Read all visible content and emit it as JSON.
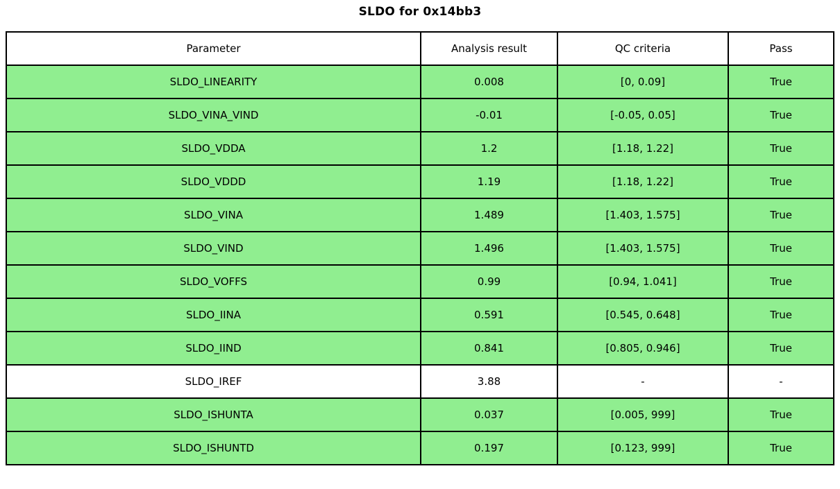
{
  "title": "SLDO for 0x14bb3",
  "colors": {
    "pass_green": "#90EE90",
    "neutral_white": "#FFFFFF",
    "border": "#000000"
  },
  "table": {
    "headers": {
      "parameter": "Parameter",
      "result": "Analysis result",
      "criteria": "QC criteria",
      "pass": "Pass"
    },
    "rows": [
      {
        "parameter": "SLDO_LINEARITY",
        "result": "0.008",
        "criteria": "[0, 0.09]",
        "pass": "True",
        "highlighted": true
      },
      {
        "parameter": "SLDO_VINA_VIND",
        "result": "-0.01",
        "criteria": "[-0.05, 0.05]",
        "pass": "True",
        "highlighted": true
      },
      {
        "parameter": "SLDO_VDDA",
        "result": "1.2",
        "criteria": "[1.18, 1.22]",
        "pass": "True",
        "highlighted": true
      },
      {
        "parameter": "SLDO_VDDD",
        "result": "1.19",
        "criteria": "[1.18, 1.22]",
        "pass": "True",
        "highlighted": true
      },
      {
        "parameter": "SLDO_VINA",
        "result": "1.489",
        "criteria": "[1.403, 1.575]",
        "pass": "True",
        "highlighted": true
      },
      {
        "parameter": "SLDO_VIND",
        "result": "1.496",
        "criteria": "[1.403, 1.575]",
        "pass": "True",
        "highlighted": true
      },
      {
        "parameter": "SLDO_VOFFS",
        "result": "0.99",
        "criteria": "[0.94, 1.041]",
        "pass": "True",
        "highlighted": true
      },
      {
        "parameter": "SLDO_IINA",
        "result": "0.591",
        "criteria": "[0.545, 0.648]",
        "pass": "True",
        "highlighted": true
      },
      {
        "parameter": "SLDO_IIND",
        "result": "0.841",
        "criteria": "[0.805, 0.946]",
        "pass": "True",
        "highlighted": true
      },
      {
        "parameter": "SLDO_IREF",
        "result": "3.88",
        "criteria": "-",
        "pass": "-",
        "highlighted": false
      },
      {
        "parameter": "SLDO_ISHUNTA",
        "result": "0.037",
        "criteria": "[0.005, 999]",
        "pass": "True",
        "highlighted": true
      },
      {
        "parameter": "SLDO_ISHUNTD",
        "result": "0.197",
        "criteria": "[0.123, 999]",
        "pass": "True",
        "highlighted": true
      }
    ]
  },
  "chart_data": {
    "type": "table",
    "title": "SLDO for 0x14bb3",
    "columns": [
      "Parameter",
      "Analysis result",
      "QC criteria",
      "Pass"
    ],
    "rows": [
      [
        "SLDO_LINEARITY",
        "0.008",
        "[0, 0.09]",
        "True"
      ],
      [
        "SLDO_VINA_VIND",
        "-0.01",
        "[-0.05, 0.05]",
        "True"
      ],
      [
        "SLDO_VDDA",
        "1.2",
        "[1.18, 1.22]",
        "True"
      ],
      [
        "SLDO_VDDD",
        "1.19",
        "[1.18, 1.22]",
        "True"
      ],
      [
        "SLDO_VINA",
        "1.489",
        "[1.403, 1.575]",
        "True"
      ],
      [
        "SLDO_VIND",
        "1.496",
        "[1.403, 1.575]",
        "True"
      ],
      [
        "SLDO_VOFFS",
        "0.99",
        "[0.94, 1.041]",
        "True"
      ],
      [
        "SLDO_IINA",
        "0.591",
        "[0.545, 0.648]",
        "True"
      ],
      [
        "SLDO_IIND",
        "0.841",
        "[0.805, 0.946]",
        "True"
      ],
      [
        "SLDO_IREF",
        "3.88",
        "-",
        "-"
      ],
      [
        "SLDO_ISHUNTA",
        "0.037",
        "[0.005, 999]",
        "True"
      ],
      [
        "SLDO_ISHUNTD",
        "0.197",
        "[0.123, 999]",
        "True"
      ]
    ]
  }
}
